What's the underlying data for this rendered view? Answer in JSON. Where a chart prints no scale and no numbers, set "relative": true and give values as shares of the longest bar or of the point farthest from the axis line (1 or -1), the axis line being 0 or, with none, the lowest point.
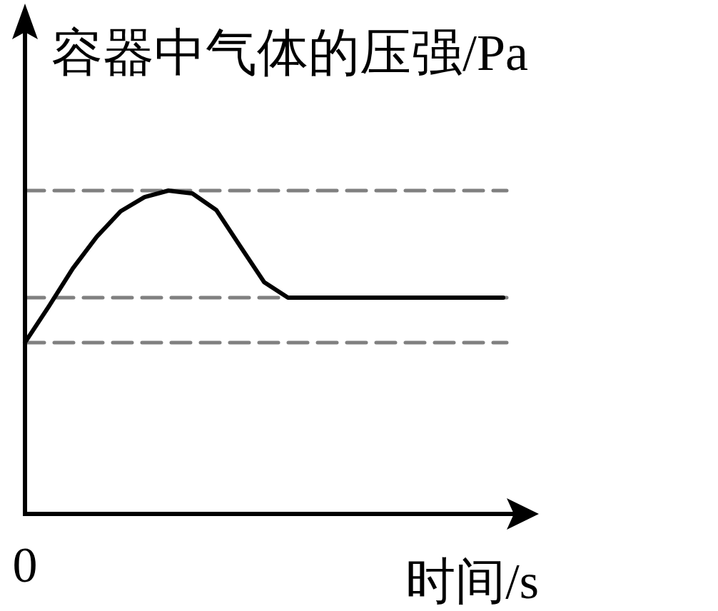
{
  "chart_data": {
    "type": "line",
    "relative": true,
    "ylabel": "容器中气体的压强/Pa",
    "xlabel": "时间/s",
    "annotations": [
      "0"
    ],
    "categories": [
      null,
      null,
      null,
      null,
      null,
      null,
      null,
      null,
      null,
      null,
      null,
      null,
      null,
      null,
      null,
      null,
      null,
      null,
      null,
      null,
      null
    ],
    "series": [
      {
        "color": "#000000",
        "values": [
          0.53,
          0.642,
          0.759,
          0.857,
          0.936,
          0.98,
          1,
          0.991,
          0.94,
          0.828,
          0.717,
          0.669,
          0.669,
          0.669,
          0.669,
          0.669,
          0.669,
          0.669,
          0.669,
          0.669,
          0.669
        ]
      }
    ],
    "ref_lines": [
      {
        "axis": "y",
        "value": 1,
        "color": "#808080",
        "line_style": "dashed"
      },
      {
        "axis": "y",
        "value": 0.669,
        "color": "#808080",
        "line_style": "dashed"
      },
      {
        "axis": "y",
        "value": 0.53,
        "color": "#808080",
        "line_style": "dashed"
      }
    ],
    "line_style": "solid",
    "marker": "none"
  }
}
